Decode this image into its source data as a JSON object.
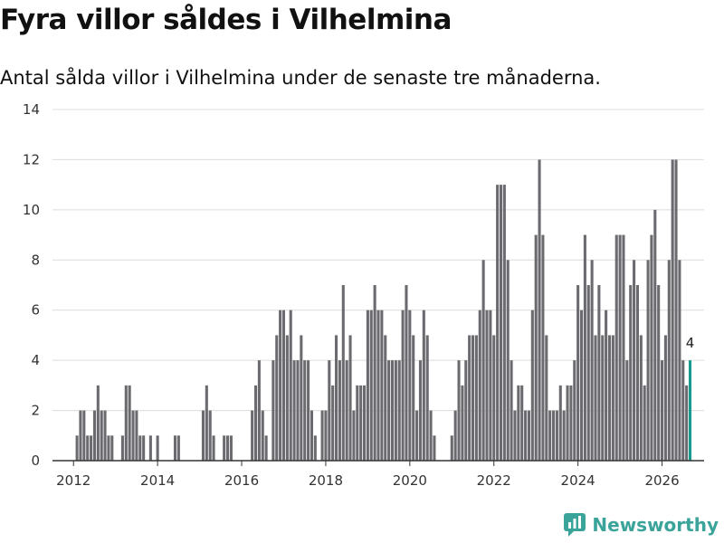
{
  "title": "Fyra villor såldes i Vilhelmina",
  "subtitle": "Antal sålda villor i Vilhelmina under de senaste tre månaderna.",
  "brand": "Newsworthy",
  "colors": {
    "bar": "#6b6a6f",
    "highlight": "#1a9a8c",
    "grid": "#dcdcdc",
    "brand": "#3aa39a"
  },
  "chart_data": {
    "type": "bar",
    "title": "Fyra villor såldes i Vilhelmina",
    "subtitle": "Antal sålda villor i Vilhelmina under de senaste tre månaderna.",
    "xlabel": "",
    "ylabel": "",
    "start": [
      2011,
      12
    ],
    "xlim": [
      2011.5,
      2027.0
    ],
    "ylim": [
      0,
      14
    ],
    "yticks": [
      0,
      2,
      4,
      6,
      8,
      10,
      12,
      14
    ],
    "xticks": [
      2012,
      2014,
      2016,
      2018,
      2020,
      2022,
      2024,
      2026
    ],
    "grid": true,
    "highlight_last": true,
    "last_label": "4",
    "values": [
      0,
      0,
      1,
      2,
      2,
      1,
      1,
      2,
      3,
      2,
      2,
      1,
      1,
      0,
      0,
      1,
      3,
      3,
      2,
      2,
      1,
      1,
      0,
      1,
      0,
      1,
      0,
      0,
      0,
      0,
      1,
      1,
      0,
      0,
      0,
      0,
      0,
      0,
      2,
      3,
      2,
      1,
      0,
      0,
      1,
      1,
      1,
      0,
      0,
      0,
      0,
      0,
      2,
      3,
      4,
      2,
      1,
      0,
      4,
      5,
      6,
      6,
      5,
      6,
      4,
      4,
      5,
      4,
      4,
      2,
      1,
      0,
      2,
      2,
      4,
      3,
      5,
      4,
      7,
      4,
      5,
      2,
      3,
      3,
      3,
      6,
      6,
      7,
      6,
      6,
      5,
      4,
      4,
      4,
      4,
      6,
      7,
      6,
      5,
      2,
      4,
      6,
      5,
      2,
      1,
      0,
      0,
      0,
      0,
      1,
      2,
      4,
      3,
      4,
      5,
      5,
      5,
      6,
      8,
      6,
      6,
      5,
      11,
      11,
      11,
      8,
      4,
      2,
      3,
      3,
      2,
      2,
      6,
      9,
      12,
      9,
      5,
      2,
      2,
      2,
      3,
      2,
      3,
      3,
      4,
      7,
      6,
      9,
      7,
      8,
      5,
      7,
      5,
      6,
      5,
      5,
      9,
      9,
      9,
      4,
      7,
      8,
      7,
      5,
      3,
      8,
      9,
      10,
      7,
      4,
      5,
      8,
      12,
      12,
      8,
      4,
      3,
      4
    ]
  }
}
